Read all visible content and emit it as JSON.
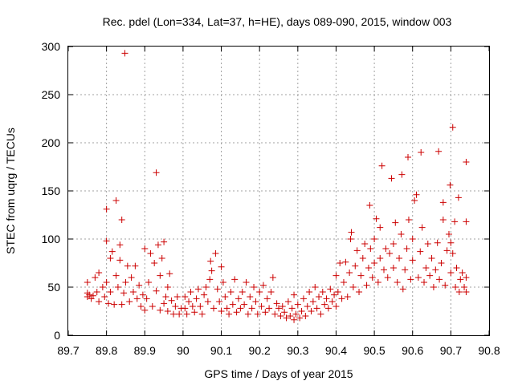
{
  "chart_data": {
    "type": "scatter",
    "title": "Rec. pdel (Lon=334, Lat=37, h=HE), days 089-090, 2015, window 003",
    "xlabel": "GPS time / Days of year 2015",
    "ylabel": "STEC from uqrg / TECUs",
    "xlim": [
      89.7,
      90.8
    ],
    "ylim": [
      0,
      300
    ],
    "xticks": [
      "89.7",
      "89.8",
      "89.9",
      "90",
      "90.1",
      "90.2",
      "90.3",
      "90.4",
      "90.5",
      "90.6",
      "90.7",
      "90.8"
    ],
    "yticks": [
      "0",
      "50",
      "100",
      "150",
      "200",
      "250",
      "300"
    ],
    "grid": true,
    "marker": "+",
    "color": "#cc0000",
    "series": [
      {
        "name": "STEC",
        "points": [
          [
            89.75,
            55
          ],
          [
            89.75,
            44
          ],
          [
            89.75,
            40
          ],
          [
            89.755,
            42
          ],
          [
            89.76,
            38
          ],
          [
            89.765,
            41
          ],
          [
            89.77,
            60
          ],
          [
            89.775,
            45
          ],
          [
            89.78,
            35
          ],
          [
            89.78,
            65
          ],
          [
            89.79,
            50
          ],
          [
            89.795,
            40
          ],
          [
            89.8,
            55
          ],
          [
            89.8,
            98
          ],
          [
            89.8,
            131
          ],
          [
            89.805,
            33
          ],
          [
            89.81,
            45
          ],
          [
            89.81,
            80
          ],
          [
            89.815,
            87
          ],
          [
            89.82,
            32
          ],
          [
            89.825,
            62
          ],
          [
            89.825,
            140
          ],
          [
            89.83,
            50
          ],
          [
            89.835,
            78
          ],
          [
            89.835,
            94
          ],
          [
            89.84,
            120
          ],
          [
            89.84,
            32
          ],
          [
            89.845,
            44
          ],
          [
            89.848,
            293
          ],
          [
            89.85,
            55
          ],
          [
            89.855,
            72
          ],
          [
            89.86,
            35
          ],
          [
            89.865,
            60
          ],
          [
            89.87,
            45
          ],
          [
            89.875,
            72
          ],
          [
            89.88,
            38
          ],
          [
            89.885,
            52
          ],
          [
            89.89,
            30
          ],
          [
            89.895,
            42
          ],
          [
            89.9,
            90
          ],
          [
            89.9,
            26
          ],
          [
            89.905,
            38
          ],
          [
            89.91,
            55
          ],
          [
            89.915,
            85
          ],
          [
            89.92,
            30
          ],
          [
            89.925,
            75
          ],
          [
            89.93,
            169
          ],
          [
            89.93,
            46
          ],
          [
            89.935,
            94
          ],
          [
            89.94,
            26
          ],
          [
            89.94,
            62
          ],
          [
            89.945,
            80
          ],
          [
            89.95,
            97
          ],
          [
            89.95,
            33
          ],
          [
            89.955,
            40
          ],
          [
            89.96,
            25
          ],
          [
            89.96,
            50
          ],
          [
            89.965,
            64
          ],
          [
            89.97,
            36
          ],
          [
            89.975,
            22
          ],
          [
            89.98,
            30
          ],
          [
            89.985,
            40
          ],
          [
            89.99,
            22
          ],
          [
            89.995,
            28
          ],
          [
            90.005,
            40
          ],
          [
            90.005,
            28
          ],
          [
            90.01,
            22
          ],
          [
            90.015,
            35
          ],
          [
            90.02,
            45
          ],
          [
            90.025,
            30
          ],
          [
            90.03,
            24
          ],
          [
            90.035,
            38
          ],
          [
            90.04,
            48
          ],
          [
            90.045,
            30
          ],
          [
            90.05,
            22
          ],
          [
            90.055,
            42
          ],
          [
            90.06,
            50
          ],
          [
            90.065,
            35
          ],
          [
            90.07,
            58
          ],
          [
            90.072,
            77
          ],
          [
            90.075,
            67
          ],
          [
            90.08,
            28
          ],
          [
            90.085,
            85
          ],
          [
            90.09,
            48
          ],
          [
            90.095,
            35
          ],
          [
            90.1,
            71
          ],
          [
            90.1,
            25
          ],
          [
            90.105,
            55
          ],
          [
            90.11,
            40
          ],
          [
            90.115,
            28
          ],
          [
            90.12,
            22
          ],
          [
            90.125,
            45
          ],
          [
            90.13,
            32
          ],
          [
            90.135,
            58
          ],
          [
            90.14,
            24
          ],
          [
            90.145,
            38
          ],
          [
            90.15,
            28
          ],
          [
            90.155,
            45
          ],
          [
            90.16,
            32
          ],
          [
            90.165,
            55
          ],
          [
            90.17,
            22
          ],
          [
            90.175,
            40
          ],
          [
            90.18,
            28
          ],
          [
            90.185,
            50
          ],
          [
            90.19,
            35
          ],
          [
            90.195,
            22
          ],
          [
            90.2,
            45
          ],
          [
            90.205,
            30
          ],
          [
            90.21,
            52
          ],
          [
            90.215,
            24
          ],
          [
            90.22,
            38
          ],
          [
            90.225,
            28
          ],
          [
            90.23,
            45
          ],
          [
            90.235,
            60
          ],
          [
            90.24,
            22
          ],
          [
            90.245,
            33
          ],
          [
            90.25,
            28
          ],
          [
            90.255,
            20
          ],
          [
            90.26,
            30
          ],
          [
            90.265,
            24
          ],
          [
            90.27,
            18
          ],
          [
            90.275,
            35
          ],
          [
            90.28,
            20
          ],
          [
            90.285,
            28
          ],
          [
            90.29,
            16
          ],
          [
            90.29,
            42
          ],
          [
            90.295,
            22
          ],
          [
            90.3,
            32
          ],
          [
            90.305,
            18
          ],
          [
            90.31,
            25
          ],
          [
            90.315,
            38
          ],
          [
            90.32,
            20
          ],
          [
            90.325,
            30
          ],
          [
            90.33,
            45
          ],
          [
            90.335,
            25
          ],
          [
            90.34,
            35
          ],
          [
            90.345,
            50
          ],
          [
            90.35,
            28
          ],
          [
            90.355,
            40
          ],
          [
            90.36,
            22
          ],
          [
            90.365,
            45
          ],
          [
            90.37,
            32
          ],
          [
            90.375,
            38
          ],
          [
            90.38,
            28
          ],
          [
            90.385,
            48
          ],
          [
            90.39,
            35
          ],
          [
            90.395,
            42
          ],
          [
            90.4,
            30
          ],
          [
            90.4,
            62
          ],
          [
            90.405,
            45
          ],
          [
            90.41,
            75
          ],
          [
            90.415,
            38
          ],
          [
            90.42,
            55
          ],
          [
            90.425,
            76
          ],
          [
            90.43,
            40
          ],
          [
            90.435,
            65
          ],
          [
            90.438,
            100
          ],
          [
            90.44,
            107
          ],
          [
            90.445,
            50
          ],
          [
            90.45,
            72
          ],
          [
            90.455,
            88
          ],
          [
            90.46,
            45
          ],
          [
            90.465,
            62
          ],
          [
            90.47,
            80
          ],
          [
            90.475,
            95
          ],
          [
            90.48,
            52
          ],
          [
            90.485,
            70
          ],
          [
            90.488,
            135
          ],
          [
            90.49,
            90
          ],
          [
            90.495,
            60
          ],
          [
            90.5,
            75
          ],
          [
            90.5,
            100
          ],
          [
            90.505,
            121
          ],
          [
            90.51,
            55
          ],
          [
            90.515,
            80
          ],
          [
            90.515,
            112
          ],
          [
            90.52,
            176
          ],
          [
            90.525,
            68
          ],
          [
            90.53,
            90
          ],
          [
            90.535,
            60
          ],
          [
            90.54,
            85
          ],
          [
            90.545,
            163
          ],
          [
            90.55,
            70
          ],
          [
            90.55,
            95
          ],
          [
            90.555,
            117
          ],
          [
            90.56,
            55
          ],
          [
            90.565,
            80
          ],
          [
            90.57,
            105
          ],
          [
            90.572,
            167
          ],
          [
            90.575,
            48
          ],
          [
            90.58,
            68
          ],
          [
            90.585,
            90
          ],
          [
            90.588,
            185
          ],
          [
            90.59,
            120
          ],
          [
            90.595,
            58
          ],
          [
            90.6,
            78
          ],
          [
            90.6,
            100
          ],
          [
            90.605,
            140
          ],
          [
            90.61,
            146
          ],
          [
            90.615,
            60
          ],
          [
            90.62,
            87
          ],
          [
            90.622,
            190
          ],
          [
            90.625,
            112
          ],
          [
            90.63,
            55
          ],
          [
            90.635,
            70
          ],
          [
            90.64,
            95
          ],
          [
            90.645,
            62
          ],
          [
            90.65,
            80
          ],
          [
            90.655,
            50
          ],
          [
            90.66,
            68
          ],
          [
            90.665,
            96
          ],
          [
            90.668,
            191
          ],
          [
            90.67,
            58
          ],
          [
            90.675,
            75
          ],
          [
            90.68,
            120
          ],
          [
            90.68,
            138
          ],
          [
            90.685,
            52
          ],
          [
            90.69,
            88
          ],
          [
            90.695,
            105
          ],
          [
            90.698,
            156
          ],
          [
            90.7,
            65
          ],
          [
            90.7,
            96
          ],
          [
            90.705,
            216
          ],
          [
            90.705,
            85
          ],
          [
            90.71,
            118
          ],
          [
            90.712,
            50
          ],
          [
            90.715,
            70
          ],
          [
            90.72,
            143
          ],
          [
            90.722,
            45
          ],
          [
            90.725,
            58
          ],
          [
            90.73,
            65
          ],
          [
            90.735,
            50
          ],
          [
            90.74,
            180
          ],
          [
            90.74,
            118
          ],
          [
            90.74,
            60
          ],
          [
            90.74,
            45
          ]
        ]
      }
    ]
  }
}
